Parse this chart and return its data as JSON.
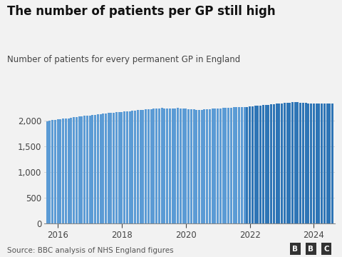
{
  "title": "The number of patients per GP still high",
  "subtitle": "Number of patients for every permanent GP in England",
  "source": "Source: BBC analysis of NHS England figures",
  "color_early": "#5b9bd5",
  "color_late": "#2e75b6",
  "background_color": "#f2f2f2",
  "ylim": [
    0,
    2600
  ],
  "yticks": [
    0,
    500,
    1000,
    1500,
    2000
  ],
  "xlabel_years": [
    2016,
    2018,
    2020,
    2022,
    2024
  ],
  "year_tick_indices": [
    4,
    28,
    52,
    76,
    100
  ],
  "values": [
    1990,
    2000,
    2010,
    2020,
    2025,
    2030,
    2040,
    2045,
    2050,
    2060,
    2070,
    2075,
    2080,
    2090,
    2095,
    2100,
    2105,
    2110,
    2120,
    2125,
    2130,
    2135,
    2140,
    2150,
    2155,
    2160,
    2165,
    2170,
    2175,
    2180,
    2185,
    2190,
    2195,
    2200,
    2205,
    2210,
    2215,
    2220,
    2225,
    2230,
    2235,
    2240,
    2245,
    2250,
    2245,
    2240,
    2235,
    2240,
    2245,
    2250,
    2245,
    2240,
    2235,
    2230,
    2225,
    2220,
    2215,
    2210,
    2215,
    2220,
    2225,
    2230,
    2235,
    2238,
    2242,
    2245,
    2248,
    2250,
    2252,
    2255,
    2260,
    2262,
    2265,
    2268,
    2270,
    2272,
    2280,
    2285,
    2290,
    2295,
    2300,
    2305,
    2310,
    2315,
    2320,
    2325,
    2330,
    2335,
    2340,
    2345,
    2350,
    2355,
    2358,
    2360,
    2358,
    2355,
    2350,
    2345,
    2342,
    2340,
    2338,
    2335,
    2334,
    2334,
    2334,
    2334,
    2334,
    2334
  ],
  "n_early": 75,
  "bar_width": 0.8
}
